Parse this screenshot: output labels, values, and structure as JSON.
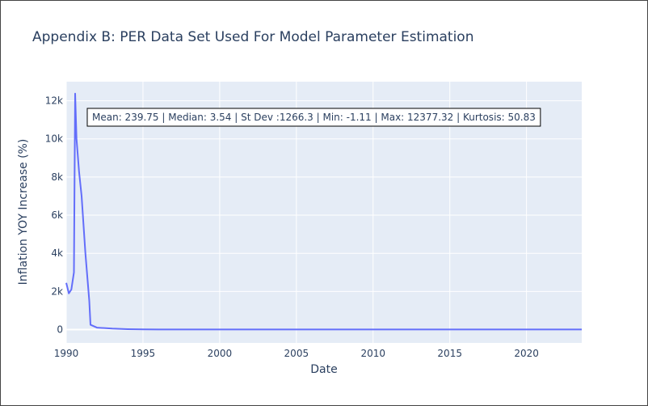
{
  "chart_data": {
    "type": "line",
    "title": "Appendix B: PER Data Set Used For Model Parameter Estimation",
    "xlabel": "Date",
    "ylabel": "Inflation YOY Increase (%)",
    "xlim": [
      1990,
      2023.6
    ],
    "ylim": [
      -700,
      13000
    ],
    "x_ticks": [
      1990,
      1995,
      2000,
      2005,
      2010,
      2015,
      2020
    ],
    "y_ticks": [
      0,
      2000,
      4000,
      6000,
      8000,
      10000,
      12000
    ],
    "y_tick_labels": [
      "0",
      "2k",
      "4k",
      "6k",
      "8k",
      "10k",
      "12k"
    ],
    "grid": true,
    "colors": {
      "line": "#636efa",
      "plot_bg": "#e5ecf6",
      "grid": "#ffffff",
      "text": "#2a3f5f"
    },
    "annotation": "Mean: 239.75 | Median: 3.54 | St Dev :1266.3 | Min: -1.11 | Max: 12377.32 | Kurtosis: 50.83",
    "series": [
      {
        "x": [
          1990.0,
          1990.17,
          1990.33,
          1990.5,
          1990.58,
          1990.67,
          1990.83,
          1991.0,
          1991.25,
          1991.5,
          1991.58,
          1992.0,
          1993.0,
          1994.0,
          1995.0,
          1996.0,
          1998.0,
          2000.0,
          2002.0,
          2004.0,
          2006.0,
          2008.0,
          2010.0,
          2012.0,
          2014.0,
          2016.0,
          2018.0,
          2020.0,
          2022.0,
          2023.6
        ],
        "y": [
          2450,
          1900,
          2100,
          3000,
          12377,
          10000,
          8300,
          7000,
          4000,
          1500,
          250,
          100,
          50,
          20,
          10,
          5,
          4,
          3,
          3,
          3,
          3,
          4,
          4,
          3,
          3,
          3,
          3,
          3,
          3,
          3
        ]
      }
    ]
  }
}
